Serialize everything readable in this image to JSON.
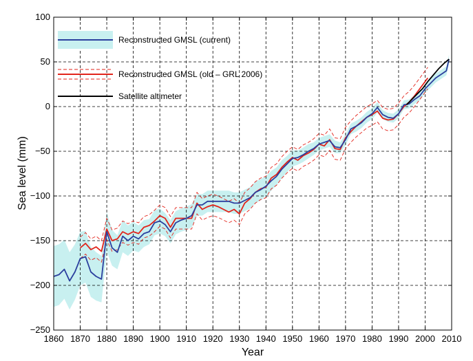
{
  "chart_data": {
    "type": "line",
    "xlabel": "Year",
    "ylabel": "Sea level (mm)",
    "xlim": [
      1860,
      2010
    ],
    "ylim": [
      -250,
      100
    ],
    "x_ticks": [
      1860,
      1870,
      1880,
      1890,
      1900,
      1910,
      1920,
      1930,
      1940,
      1950,
      1960,
      1970,
      1980,
      1990,
      2000,
      2010
    ],
    "y_ticks": [
      -250,
      -200,
      -150,
      -100,
      -50,
      0,
      50,
      100
    ],
    "grid": true,
    "legend_position": "top-left",
    "series": [
      {
        "name": "Reconstructed GMSL (current)",
        "color": "#2b3f9e",
        "band_color": "#c8f0f0",
        "x": [
          1860,
          1862,
          1864,
          1866,
          1868,
          1870,
          1872,
          1874,
          1876,
          1878,
          1880,
          1882,
          1884,
          1886,
          1888,
          1890,
          1892,
          1894,
          1896,
          1898,
          1900,
          1902,
          1904,
          1906,
          1908,
          1910,
          1912,
          1914,
          1916,
          1918,
          1920,
          1922,
          1924,
          1926,
          1928,
          1930,
          1932,
          1934,
          1936,
          1938,
          1940,
          1942,
          1944,
          1946,
          1948,
          1950,
          1952,
          1954,
          1956,
          1958,
          1960,
          1962,
          1964,
          1966,
          1968,
          1970,
          1972,
          1974,
          1976,
          1978,
          1980,
          1982,
          1984,
          1986,
          1988,
          1990,
          1992,
          1994,
          1996,
          1998,
          2000,
          2002,
          2004,
          2006,
          2008,
          2009
        ],
        "y": [
          -190,
          -188,
          -182,
          -195,
          -185,
          -170,
          -168,
          -185,
          -190,
          -193,
          -140,
          -158,
          -163,
          -145,
          -150,
          -145,
          -148,
          -142,
          -140,
          -130,
          -128,
          -132,
          -140,
          -130,
          -127,
          -125,
          -122,
          -110,
          -110,
          -106,
          -106,
          -106,
          -106,
          -106,
          -108,
          -108,
          -105,
          -102,
          -96,
          -93,
          -89,
          -83,
          -78,
          -70,
          -64,
          -58,
          -57,
          -54,
          -50,
          -47,
          -42,
          -40,
          -38,
          -45,
          -46,
          -37,
          -25,
          -22,
          -18,
          -12,
          -8,
          -1,
          -9,
          -12,
          -13,
          -8,
          2,
          3,
          8,
          12,
          20,
          26,
          32,
          36,
          40,
          53
        ],
        "band_half_width": [
          34,
          34,
          33,
          32,
          31,
          30,
          29,
          28,
          27,
          26,
          22,
          20,
          19,
          18,
          17,
          16,
          15,
          15,
          14,
          14,
          14,
          13,
          13,
          13,
          13,
          13,
          13,
          12,
          12,
          12,
          12,
          12,
          12,
          12,
          12,
          12,
          12,
          12,
          12,
          12,
          11,
          11,
          10,
          10,
          9,
          9,
          8,
          8,
          8,
          7,
          7,
          7,
          7,
          7,
          6,
          6,
          6,
          6,
          6,
          6,
          6,
          6,
          5,
          5,
          5,
          5,
          5,
          5,
          5,
          5,
          5,
          5,
          5,
          5,
          5,
          5
        ]
      },
      {
        "name": "Reconstructed GMSL (old – GRL 2006)",
        "color": "#e2231a",
        "x": [
          1870,
          1872,
          1874,
          1876,
          1878,
          1880,
          1882,
          1884,
          1886,
          1888,
          1890,
          1892,
          1894,
          1896,
          1898,
          1900,
          1902,
          1904,
          1906,
          1908,
          1910,
          1912,
          1914,
          1916,
          1918,
          1920,
          1922,
          1924,
          1926,
          1928,
          1930,
          1932,
          1934,
          1936,
          1938,
          1940,
          1942,
          1944,
          1946,
          1948,
          1950,
          1952,
          1954,
          1956,
          1958,
          1960,
          1962,
          1964,
          1966,
          1968,
          1970,
          1972,
          1974,
          1976,
          1978,
          1980,
          1982,
          1984,
          1986,
          1988,
          1990,
          1992,
          1994,
          1996,
          1998,
          2000,
          2001
        ],
        "y": [
          -158,
          -153,
          -160,
          -157,
          -162,
          -137,
          -150,
          -148,
          -140,
          -143,
          -140,
          -142,
          -135,
          -133,
          -128,
          -122,
          -125,
          -135,
          -125,
          -125,
          -125,
          -125,
          -108,
          -115,
          -112,
          -110,
          -112,
          -115,
          -118,
          -115,
          -120,
          -108,
          -103,
          -96,
          -92,
          -90,
          -80,
          -76,
          -68,
          -62,
          -57,
          -60,
          -55,
          -52,
          -48,
          -42,
          -44,
          -37,
          -47,
          -48,
          -35,
          -28,
          -22,
          -17,
          -12,
          -9,
          -5,
          -13,
          -15,
          -14,
          -8,
          0,
          5,
          12,
          20,
          28,
          32
        ],
        "band_half_width": 12
      },
      {
        "name": "Satellite altimeter",
        "color": "#000000",
        "x": [
          1993,
          1995,
          1997,
          1999,
          2001,
          2003,
          2005,
          2007,
          2009
        ],
        "y": [
          2,
          8,
          14,
          20,
          28,
          35,
          42,
          48,
          53
        ]
      }
    ]
  }
}
